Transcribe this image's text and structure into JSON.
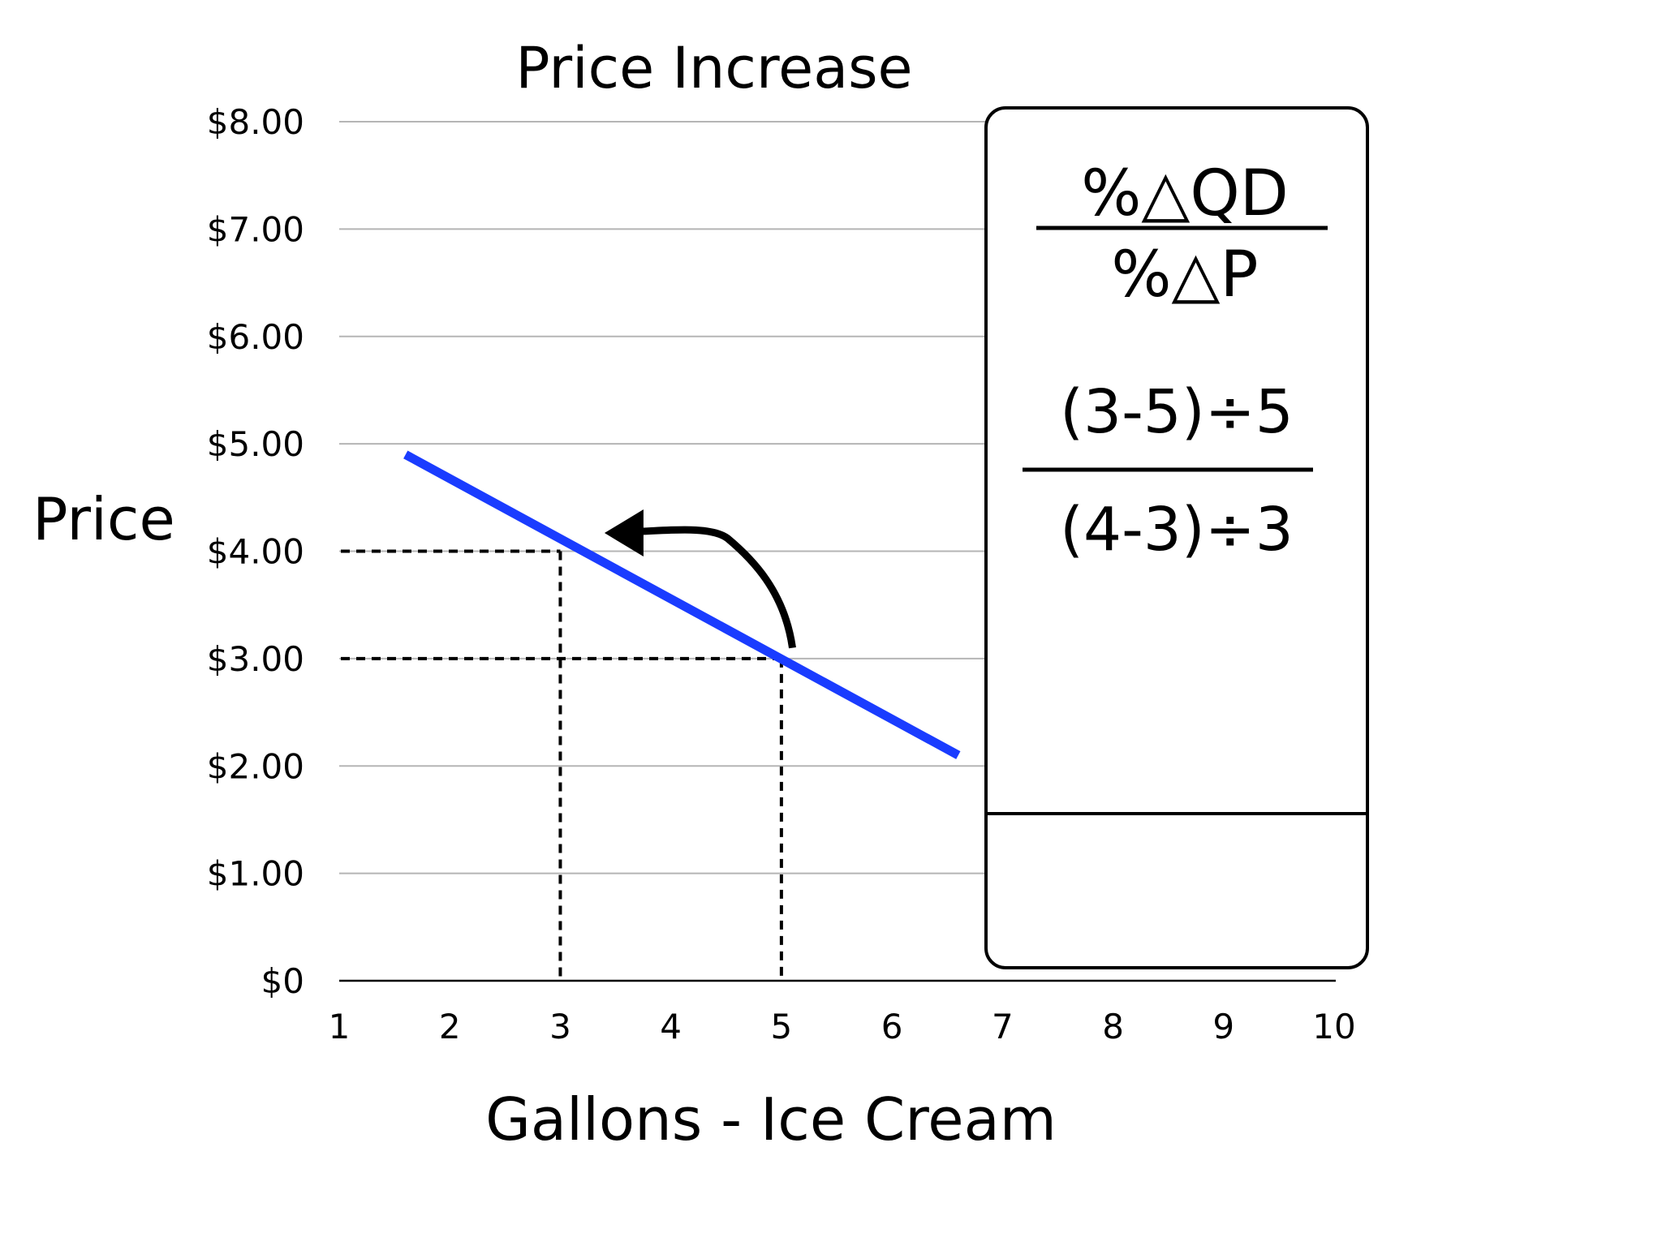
{
  "chart_data": {
    "type": "line",
    "title": "Price Increase",
    "xlabel": "Gallons - Ice Cream",
    "ylabel": "Price",
    "x_ticks": [
      "1",
      "2",
      "3",
      "4",
      "5",
      "6",
      "7",
      "8",
      "9",
      "10"
    ],
    "y_ticks": [
      "$0",
      "$1.00",
      "$2.00",
      "$3.00",
      "$4.00",
      "$5.00",
      "$6.00",
      "$7.00",
      "$8.00"
    ],
    "xlim": [
      1,
      10
    ],
    "ylim": [
      0,
      8
    ],
    "grid": "horizontal",
    "series": [
      {
        "color": "#1a3cff",
        "points": [
          {
            "x": 1.6,
            "y": 4.9
          },
          {
            "x": 6.6,
            "y": 2.1
          }
        ]
      }
    ],
    "reference_points": [
      {
        "x": 3,
        "y": 4
      },
      {
        "x": 5,
        "y": 3
      }
    ],
    "annotation_arrow": {
      "from": {
        "x": 5.1,
        "y": 3.1
      },
      "to": {
        "x": 3.4,
        "y": 4.2
      }
    },
    "formula_box": {
      "line1": "%△QD",
      "line2": "%△P",
      "numerator": "(3-5)÷5",
      "denominator": "(4-3)÷3",
      "result": ""
    }
  },
  "colors": {
    "demand_line": "#1a3cff",
    "gridline": "#b5b5b5",
    "text": "#000000"
  }
}
